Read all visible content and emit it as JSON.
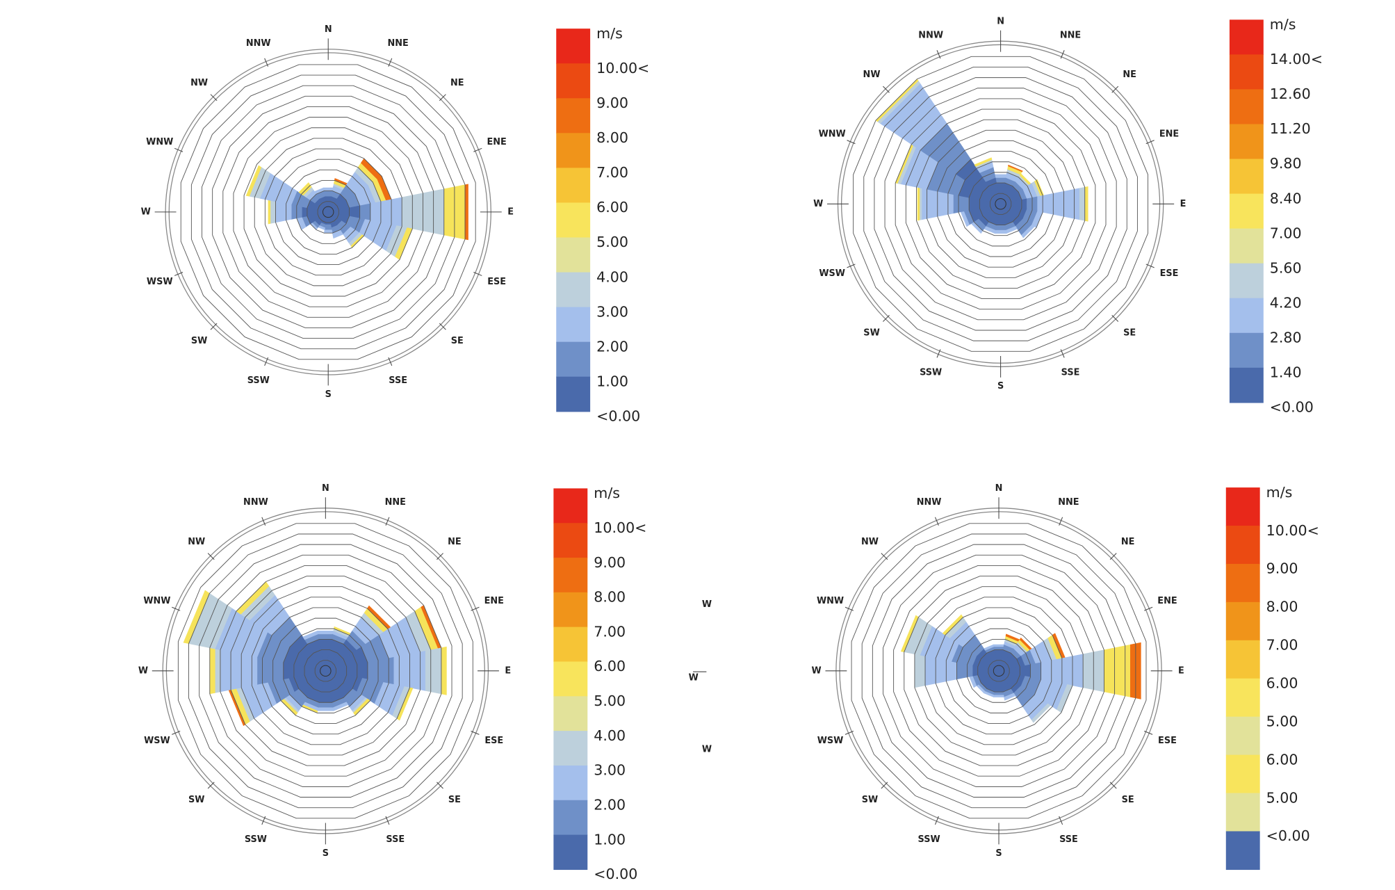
{
  "chart_data": [
    {
      "type": "windrose",
      "categories": [
        "N",
        "NNE",
        "NE",
        "ENE",
        "E",
        "ESE",
        "SE",
        "SSE",
        "S",
        "SSW",
        "SW",
        "WSW",
        "W",
        "WNW",
        "NW",
        "NNW"
      ],
      "rlim": [
        0,
        14
      ],
      "rticks": [
        1,
        2,
        3,
        4,
        5,
        6,
        7,
        8,
        9,
        10,
        11,
        12,
        13,
        14
      ],
      "series": [
        {
          "color": "#4a6aab",
          "values": [
            1.5,
            1.5,
            2,
            2,
            3,
            2,
            1.5,
            1.5,
            1.2,
            1.2,
            1.5,
            2,
            2.5,
            2,
            1.5,
            1.5
          ]
        },
        {
          "color": "#6f90c8",
          "values": [
            0.5,
            0.5,
            1,
            1,
            1,
            1.5,
            1,
            0.5,
            0.5,
            0.3,
            0.3,
            0.5,
            1,
            1.5,
            0.5,
            0.5
          ]
        },
        {
          "color": "#a4bfec",
          "values": [
            0.3,
            0.5,
            1.5,
            1.5,
            3,
            3,
            1,
            0.5,
            0.3,
            0.2,
            0.2,
            0.5,
            1.5,
            3,
            0.5,
            0.3
          ]
        },
        {
          "color": "#bdd0dc",
          "values": [
            0,
            0.2,
            0.5,
            0.5,
            4,
            1,
            0.3,
            0,
            0,
            0,
            0,
            0,
            0.5,
            1,
            0.3,
            0
          ]
        },
        {
          "color": "#f6e35a",
          "values": [
            0,
            0.3,
            0.5,
            0.5,
            2,
            0.5,
            0.2,
            0,
            0,
            0,
            0,
            0,
            0.2,
            0.3,
            0.5,
            0
          ]
        },
        {
          "color": "#ee6e12",
          "values": [
            0,
            0.2,
            0.5,
            0.5,
            0.3,
            0,
            0,
            0,
            0,
            0,
            0,
            0,
            0,
            0,
            0,
            0
          ]
        }
      ],
      "legend": {
        "labels": [
          "m/s",
          "10.00<",
          "9.00",
          "8.00",
          "7.00",
          "6.00",
          "5.00",
          "4.00",
          "3.00",
          "2.00",
          "1.00",
          "<0.00"
        ],
        "colors": [
          "#e8281a",
          "#eb4a12",
          "#ee6e12",
          "#f0941a",
          "#f6c436",
          "#f8e45c",
          "#e2e29a",
          "#bdd0dc",
          "#a4bfec",
          "#6f90c8",
          "#4a6aab"
        ]
      }
    },
    {
      "type": "windrose",
      "categories": [
        "N",
        "NNE",
        "NE",
        "ENE",
        "E",
        "ESE",
        "SE",
        "SSE",
        "S",
        "SSW",
        "SW",
        "WSW",
        "W",
        "WNW",
        "NW",
        "NNW"
      ],
      "rlim": [
        0,
        14
      ],
      "rticks": [
        1,
        2,
        3,
        4,
        5,
        6,
        7,
        8,
        9,
        10,
        11,
        12,
        13,
        14
      ],
      "series": [
        {
          "color": "#4a6aab",
          "values": [
            2,
            2,
            2,
            2,
            2.5,
            2.5,
            2.5,
            2,
            2,
            2,
            2.5,
            3,
            3,
            4,
            5,
            2.5
          ]
        },
        {
          "color": "#6f90c8",
          "values": [
            0.5,
            0.5,
            0.5,
            0.5,
            1,
            1,
            1,
            0.5,
            0.5,
            0.5,
            0.5,
            0.5,
            1.5,
            3,
            4,
            1
          ]
        },
        {
          "color": "#a4bfec",
          "values": [
            0.3,
            0.5,
            0.5,
            1,
            4,
            0.5,
            0.3,
            0.3,
            0.3,
            0.3,
            0.3,
            0.3,
            3,
            2.5,
            4.5,
            0.5
          ]
        },
        {
          "color": "#bdd0dc",
          "values": [
            0,
            0.3,
            0.2,
            0.3,
            0.5,
            0,
            0,
            0,
            0,
            0,
            0,
            0,
            0.2,
            0.3,
            0.3,
            0.2
          ]
        },
        {
          "color": "#f6e35a",
          "values": [
            0,
            0.3,
            0.2,
            0.3,
            0.3,
            0,
            0,
            0,
            0,
            0,
            0,
            0,
            0.2,
            0.2,
            0.2,
            0.2
          ]
        },
        {
          "color": "#ee6e12",
          "values": [
            0,
            0.1,
            0,
            0,
            0,
            0,
            0,
            0,
            0,
            0,
            0,
            0,
            0,
            0,
            0,
            0
          ]
        }
      ],
      "legend": {
        "labels": [
          "m/s",
          "14.00<",
          "12.60",
          "11.20",
          "9.80",
          "8.40",
          "7.00",
          "5.60",
          "4.20",
          "2.80",
          "1.40",
          "<0.00"
        ],
        "colors": [
          "#e8281a",
          "#eb4a12",
          "#ee6e12",
          "#f0941a",
          "#f6c436",
          "#f8e45c",
          "#e2e29a",
          "#bdd0dc",
          "#a4bfec",
          "#6f90c8",
          "#4a6aab"
        ]
      }
    },
    {
      "type": "windrose",
      "categories": [
        "N",
        "NNE",
        "NE",
        "ENE",
        "E",
        "ESE",
        "SE",
        "SSE",
        "S",
        "SSW",
        "SW",
        "WSW",
        "W",
        "WNW",
        "NW",
        "NNW"
      ],
      "rlim": [
        0,
        14
      ],
      "rticks": [
        1,
        2,
        3,
        4,
        5,
        6,
        7,
        8,
        9,
        10,
        11,
        12,
        13,
        14
      ],
      "series": [
        {
          "color": "#4a6aab",
          "values": [
            3,
            3,
            3.5,
            4,
            4,
            3.5,
            3,
            3,
            3,
            3,
            3,
            3.5,
            4,
            4,
            4,
            3
          ]
        },
        {
          "color": "#6f90c8",
          "values": [
            0.5,
            0.5,
            1,
            2,
            2.5,
            2,
            1,
            0.5,
            0.5,
            0.5,
            1,
            2,
            2.5,
            2.5,
            2,
            0.5
          ]
        },
        {
          "color": "#a4bfec",
          "values": [
            0.3,
            0.3,
            1.5,
            3,
            3,
            2,
            0.5,
            0.3,
            0.3,
            0.3,
            0.5,
            2.5,
            3.5,
            4,
            2.5,
            0.3
          ]
        },
        {
          "color": "#bdd0dc",
          "values": [
            0,
            0.2,
            0.5,
            1,
            1.5,
            0.5,
            0.2,
            0,
            0,
            0,
            0.2,
            0.5,
            0.5,
            2.5,
            1,
            0
          ]
        },
        {
          "color": "#f6e35a",
          "values": [
            0,
            0.2,
            0.5,
            0.7,
            0.5,
            0.3,
            0.3,
            0,
            0,
            0.2,
            0.3,
            0.5,
            0.5,
            0.5,
            0.5,
            0
          ]
        },
        {
          "color": "#ee6e12",
          "values": [
            0,
            0,
            0.3,
            0.3,
            0,
            0,
            0,
            0,
            0,
            0,
            0,
            0.2,
            0,
            0,
            0,
            0
          ]
        }
      ],
      "legend": {
        "labels": [
          "m/s",
          "10.00<",
          "9.00",
          "8.00",
          "7.00",
          "6.00",
          "5.00",
          "4.00",
          "3.00",
          "2.00",
          "1.00",
          "<0.00"
        ],
        "colors": [
          "#e8281a",
          "#eb4a12",
          "#ee6e12",
          "#f0941a",
          "#f6c436",
          "#f8e45c",
          "#e2e29a",
          "#bdd0dc",
          "#a4bfec",
          "#6f90c8",
          "#4a6aab"
        ]
      }
    },
    {
      "type": "windrose",
      "categories": [
        "N",
        "NNE",
        "NE",
        "ENE",
        "E",
        "ESE",
        "SE",
        "SSE",
        "S",
        "SSW",
        "SW",
        "WSW",
        "W",
        "WNW",
        "NW",
        "NNW"
      ],
      "rlim": [
        0,
        14
      ],
      "rticks": [
        1,
        2,
        3,
        4,
        5,
        6,
        7,
        8,
        9,
        10,
        11,
        12,
        13,
        14
      ],
      "series": [
        {
          "color": "#4a6aab",
          "values": [
            2,
            2,
            2,
            2.5,
            3,
            2.5,
            2.5,
            2,
            2,
            2,
            2,
            2,
            2.5,
            2.5,
            2.5,
            2
          ]
        },
        {
          "color": "#6f90c8",
          "values": [
            0.3,
            0.5,
            0.5,
            1,
            1,
            1.5,
            1.5,
            0.5,
            0.3,
            0.3,
            0.3,
            0.5,
            1.5,
            2,
            1.5,
            0.3
          ]
        },
        {
          "color": "#a4bfec",
          "values": [
            0.2,
            0.3,
            0.5,
            1.5,
            4,
            2.5,
            1.5,
            0.3,
            0.2,
            0.2,
            0.2,
            0.3,
            3,
            3,
            1.5,
            0.2
          ]
        },
        {
          "color": "#bdd0dc",
          "values": [
            0,
            0.2,
            0.2,
            0.5,
            2,
            0.5,
            0.3,
            0,
            0,
            0,
            0,
            0,
            1,
            1.5,
            0.5,
            0
          ]
        },
        {
          "color": "#f6e35a",
          "values": [
            0,
            0.3,
            0.3,
            0.5,
            2.5,
            0,
            0,
            0,
            0,
            0,
            0,
            0,
            0,
            0.3,
            0.3,
            0
          ]
        },
        {
          "color": "#ee6e12",
          "values": [
            0,
            0.2,
            0.2,
            0.3,
            1,
            0,
            0,
            0,
            0,
            0,
            0,
            0,
            0,
            0,
            0,
            0
          ]
        }
      ],
      "legend": {
        "labels": [
          "m/s",
          "10.00<",
          "9.00",
          "8.00",
          "7.00",
          "6.00",
          "5.00",
          "6.00",
          "5.00",
          "<0.00"
        ],
        "colors": [
          "#e8281a",
          "#eb4a12",
          "#ee6e12",
          "#f0941a",
          "#f6c436",
          "#f8e45c",
          "#e2e29a",
          "#f8e45c",
          "#e2e29a",
          "#4a6aab"
        ]
      }
    }
  ],
  "fragments": [
    "W",
    "W",
    "W"
  ]
}
